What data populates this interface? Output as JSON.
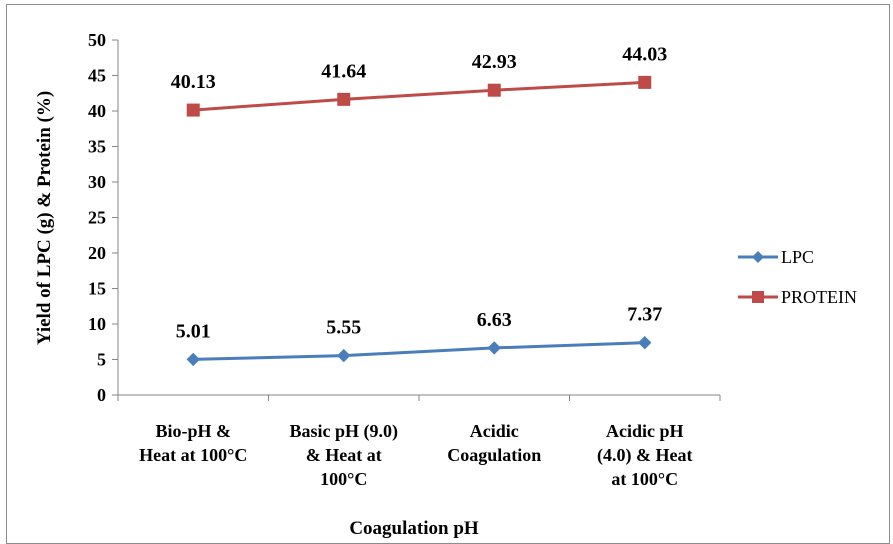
{
  "chart_data": {
    "type": "line",
    "categories": [
      [
        "Bio-pH &",
        "Heat at 100°C"
      ],
      [
        "Basic pH (9.0)",
        "& Heat at",
        "100°C"
      ],
      [
        "Acidic",
        "Coagulation"
      ],
      [
        "Acidic pH",
        "(4.0) & Heat",
        "at 100°C"
      ]
    ],
    "series": [
      {
        "name": "LPC",
        "values": [
          5.01,
          5.55,
          6.63,
          7.37
        ],
        "labels": [
          "5.01",
          "5.55",
          "6.63",
          "7.37"
        ],
        "color": "#4a7ebb",
        "marker": "diamond"
      },
      {
        "name": "PROTEIN",
        "values": [
          40.13,
          41.64,
          42.93,
          44.03
        ],
        "labels": [
          "40.13",
          "41.64",
          "42.93",
          "44.03"
        ],
        "color": "#be4b48",
        "marker": "square"
      }
    ],
    "title": "",
    "xlabel": "Coagulation pH",
    "ylabel": "Yield of LPC  (g) & Protein (%)",
    "ylim": [
      0,
      50
    ],
    "yticks": [
      "0",
      "5",
      "10",
      "15",
      "20",
      "25",
      "30",
      "35",
      "40",
      "45",
      "50"
    ],
    "grid": false,
    "legend_position": "right"
  }
}
